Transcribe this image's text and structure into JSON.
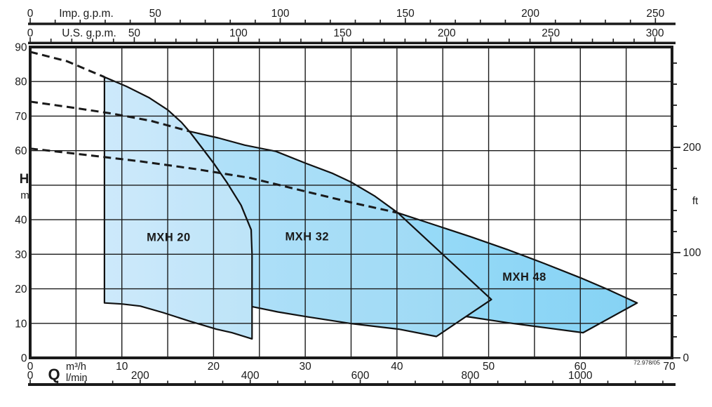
{
  "chart_data": {
    "type": "area",
    "title": "MXH pump operating range chart (head H vs flow Q)",
    "footnote": "72.978/05",
    "colors": {
      "line": "#1a1a1a",
      "outline": "#111111",
      "mxh20_fill_left": "#cde9fb",
      "mxh20_fill_right": "#bde4f8",
      "mxh32_fill_left": "#b2e1f9",
      "mxh32_fill_right": "#9bd9f4",
      "mxh48_fill_left": "#99dbf8",
      "mxh48_fill_right": "#85d2f4"
    },
    "x_axis_imp_gpm": {
      "label": "Imp. g.p.m.",
      "ticks": [
        0,
        50,
        100,
        150,
        200,
        250
      ],
      "minor_step": 10,
      "max": 250,
      "m3h_per_unit": 0.27276
    },
    "x_axis_us_gpm": {
      "label": "U.S. g.p.m.",
      "ticks": [
        0,
        50,
        100,
        150,
        200,
        250,
        300
      ],
      "minor_step": 10,
      "max": 300,
      "m3h_per_unit": 0.22712
    },
    "x_axis_m3h": {
      "axis_label": "Q",
      "unit_label": "m³/h",
      "ticks": [
        0,
        10,
        20,
        30,
        40,
        50,
        60,
        70
      ],
      "range": [
        0,
        70
      ]
    },
    "x_axis_lmin": {
      "unit_label": "l/min",
      "ticks": [
        0,
        200,
        400,
        600,
        800,
        1000
      ],
      "minor_step": 50,
      "max": 1150,
      "m3h_per_unit": 0.06
    },
    "y_axis_m": {
      "label": "H",
      "unit": "m",
      "ticks": [
        0,
        10,
        20,
        30,
        40,
        60,
        70,
        80,
        90
      ],
      "range": [
        0,
        90
      ],
      "note_skipped_tick": 50
    },
    "y_axis_ft": {
      "label": "ft",
      "ticks": [
        0,
        100,
        200
      ],
      "minor_step": 20,
      "max": 280,
      "m_per_unit": 0.3048
    },
    "grid": {
      "x_step_m3h": 5,
      "y_step_m": 10
    },
    "series": [
      {
        "name": "MXH 20",
        "label_q": 15.1,
        "label_h": 34.8,
        "fill_from": "mxh20_fill_left",
        "fill_to": "mxh20_fill_right",
        "points": [
          [
            8.1,
            81.3
          ],
          [
            10.5,
            78.6
          ],
          [
            13,
            75.3
          ],
          [
            15,
            71.8
          ],
          [
            16.5,
            68.2
          ],
          [
            17.35,
            65.6
          ],
          [
            18.6,
            61.3
          ],
          [
            20,
            56.4
          ],
          [
            21.5,
            50.6
          ],
          [
            23,
            44.2
          ],
          [
            24.1,
            37.1
          ],
          [
            24.2,
            30.0
          ],
          [
            24.2,
            5.5
          ],
          [
            22,
            7.3
          ],
          [
            20.3,
            8.3
          ],
          [
            17.3,
            10.7
          ],
          [
            14.5,
            13.1
          ],
          [
            12,
            15.0
          ],
          [
            10,
            15.6
          ],
          [
            8.1,
            15.9
          ]
        ]
      },
      {
        "name": "MXH 32",
        "label_q": 30.2,
        "label_h": 35.0,
        "fill_from": "mxh32_fill_left",
        "fill_to": "mxh32_fill_right",
        "points": [
          [
            17.35,
            65.6
          ],
          [
            20.5,
            63.7
          ],
          [
            23.4,
            61.6
          ],
          [
            26.8,
            59.8
          ],
          [
            30.1,
            56.3
          ],
          [
            33,
            53.4
          ],
          [
            35,
            50.9
          ],
          [
            37.6,
            46.8
          ],
          [
            40.1,
            42.0
          ],
          [
            45.1,
            29.7
          ],
          [
            50.3,
            16.9
          ],
          [
            44.3,
            6.2
          ],
          [
            40.2,
            8.3
          ],
          [
            35.1,
            9.9
          ],
          [
            30.2,
            11.9
          ],
          [
            27,
            13.3
          ],
          [
            24.1,
            14.9
          ],
          [
            24.1,
            37.1
          ],
          [
            23,
            44.2
          ],
          [
            21.5,
            50.6
          ],
          [
            20,
            56.4
          ],
          [
            18.6,
            61.3
          ]
        ]
      },
      {
        "name": "MXH 48",
        "label_q": 53.9,
        "label_h": 23.4,
        "fill_from": "mxh48_fill_left",
        "fill_to": "mxh48_fill_right",
        "points": [
          [
            40.1,
            42.0
          ],
          [
            44,
            38.6
          ],
          [
            48,
            35.1
          ],
          [
            52,
            31.4
          ],
          [
            56,
            27.4
          ],
          [
            60,
            23.2
          ],
          [
            63,
            19.8
          ],
          [
            66.2,
            15.9
          ],
          [
            60.3,
            7.3
          ],
          [
            56,
            8.8
          ],
          [
            52,
            10.2
          ],
          [
            48,
            11.8
          ],
          [
            45,
            12.9
          ],
          [
            43.5,
            13.6
          ],
          [
            41.5,
            24.0
          ]
        ]
      }
    ],
    "dashed_limit_curves": [
      {
        "name": "limit-mxh20",
        "points": [
          [
            0,
            88.6
          ],
          [
            4,
            85.9
          ],
          [
            8.1,
            81.3
          ]
        ]
      },
      {
        "name": "limit-mxh32",
        "points": [
          [
            0,
            74.2
          ],
          [
            4.5,
            72.5
          ],
          [
            9,
            70.7
          ],
          [
            13.2,
            68.6
          ],
          [
            17.35,
            65.6
          ]
        ]
      },
      {
        "name": "limit-mxh48",
        "points": [
          [
            0,
            60.6
          ],
          [
            6,
            58.8
          ],
          [
            12,
            56.9
          ],
          [
            18,
            54.7
          ],
          [
            24,
            52.1
          ],
          [
            30,
            48.2
          ],
          [
            35,
            45.0
          ],
          [
            40.1,
            42.0
          ]
        ]
      }
    ]
  }
}
